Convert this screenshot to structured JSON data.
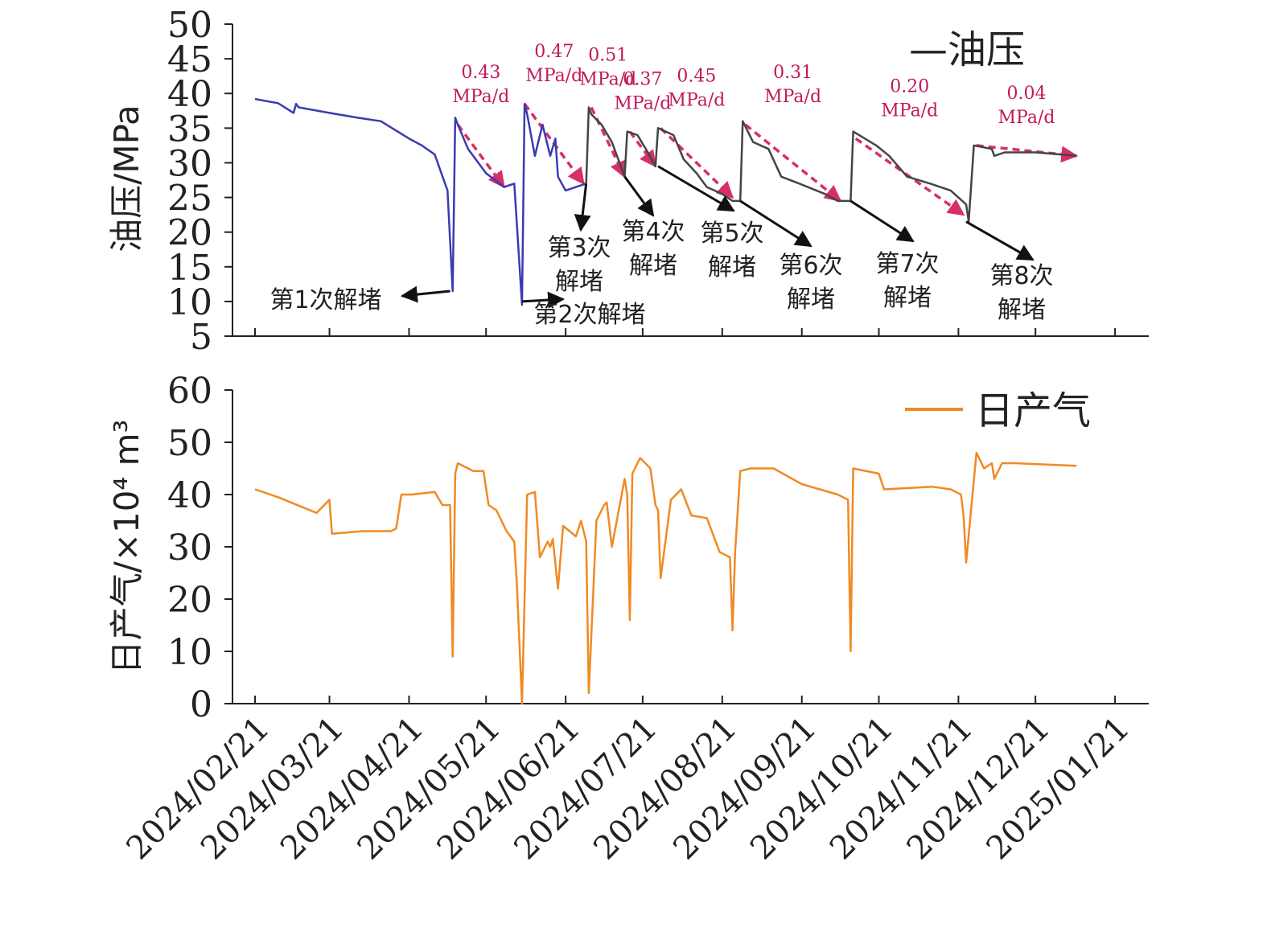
{
  "chart_data": [
    {
      "type": "line",
      "ylabel": "油压/MPa",
      "ylim": [
        5,
        50
      ],
      "yticks": [
        "5",
        "10",
        "15",
        "20",
        "25",
        "30",
        "35",
        "40",
        "45",
        "50"
      ],
      "legend": {
        "label": "—油压",
        "position": "top-right"
      },
      "colors": {
        "line_early": "#3b3bb0",
        "line_late": "#444444",
        "trend": "#d62f6a",
        "arrow": "#111111"
      },
      "series": [
        {
          "name": "油压",
          "x": [
            "2024/02/21",
            "2024/03/01",
            "2024/03/07",
            "2024/03/08",
            "2024/03/09",
            "2024/03/21",
            "2024/04/01",
            "2024/04/10",
            "2024/04/21",
            "2024/04/26",
            "2024/05/01",
            "2024/05/06",
            "2024/05/08",
            "2024/05/09",
            "2024/05/10",
            "2024/05/14",
            "2024/05/21",
            "2024/05/28",
            "2024/06/01",
            "2024/06/04",
            "2024/06/05",
            "2024/06/06",
            "2024/06/09",
            "2024/06/12",
            "2024/06/15",
            "2024/06/17",
            "2024/06/18",
            "2024/06/21",
            "2024/06/25",
            "2024/06/29",
            "2024/06/30",
            "2024/07/01",
            "2024/07/05",
            "2024/07/09",
            "2024/07/14",
            "2024/07/15",
            "2024/07/19",
            "2024/07/23",
            "2024/07/26",
            "2024/07/27",
            "2024/08/02",
            "2024/08/06",
            "2024/08/11",
            "2024/08/15",
            "2024/08/21",
            "2024/08/25",
            "2024/08/28",
            "2024/08/29",
            "2024/09/02",
            "2024/09/08",
            "2024/09/13",
            "2024/09/20",
            "2024/09/30",
            "2024/10/05",
            "2024/10/10",
            "2024/10/11",
            "2024/10/20",
            "2024/10/25",
            "2024/11/01",
            "2024/11/10",
            "2024/11/18",
            "2024/11/24",
            "2024/11/25",
            "2024/11/27",
            "2024/12/04",
            "2024/12/05",
            "2024/12/09",
            "2024/12/21",
            "2025/01/06"
          ],
          "values": [
            39.2,
            38.6,
            37.2,
            38.5,
            38.0,
            37.2,
            36.5,
            36.0,
            33.5,
            32.5,
            31.2,
            26.0,
            11.5,
            36.5,
            35.5,
            32.0,
            28.5,
            26.5,
            27.0,
            9.5,
            38.5,
            37.0,
            31.0,
            35.5,
            31.0,
            33.5,
            28.0,
            26.0,
            26.5,
            27.0,
            38.0,
            37.0,
            35.5,
            33.0,
            28.0,
            34.5,
            34.0,
            31.5,
            29.5,
            35.0,
            34.0,
            30.5,
            28.5,
            26.5,
            25.5,
            24.5,
            24.5,
            36.0,
            33.0,
            32.0,
            28.0,
            27.0,
            25.5,
            24.5,
            24.5,
            34.5,
            32.5,
            31.0,
            28.0,
            27.0,
            26.0,
            24.0,
            21.5,
            32.5,
            32.0,
            31.0,
            31.5,
            31.5,
            31.0
          ]
        }
      ],
      "trend_lines": [
        {
          "from": [
            "2024/05/10",
            35.5
          ],
          "to": [
            "2024/05/28",
            26.5
          ],
          "rate": "0.43",
          "unit": "MPa/d"
        },
        {
          "from": [
            "2024/06/05",
            38.5
          ],
          "to": [
            "2024/06/28",
            27.0
          ],
          "rate": "0.47",
          "unit": "MPa/d"
        },
        {
          "from": [
            "2024/07/01",
            38.0
          ],
          "to": [
            "2024/07/14",
            28.0
          ],
          "rate": "0.51",
          "unit": "MPa/d"
        },
        {
          "from": [
            "2024/07/16",
            34.5
          ],
          "to": [
            "2024/07/26",
            29.5
          ],
          "rate": "0.37",
          "unit": "MPa/d"
        },
        {
          "from": [
            "2024/07/28",
            35.0
          ],
          "to": [
            "2024/08/25",
            25.0
          ],
          "rate": "0.45",
          "unit": "MPa/d"
        },
        {
          "from": [
            "2024/08/30",
            35.5
          ],
          "to": [
            "2024/10/06",
            24.5
          ],
          "rate": "0.31",
          "unit": "MPa/d"
        },
        {
          "from": [
            "2024/10/12",
            33.5
          ],
          "to": [
            "2024/11/23",
            22.5
          ],
          "rate": "0.20",
          "unit": "MPa/d"
        },
        {
          "from": [
            "2024/11/28",
            32.5
          ],
          "to": [
            "2025/01/06",
            31.0
          ],
          "rate": "0.04",
          "unit": "MPa/d"
        }
      ],
      "annotations": [
        {
          "lines": [
            "第1次解堵"
          ],
          "target": [
            "2024/05/07",
            11.5
          ]
        },
        {
          "lines": [
            "第2次解堵"
          ],
          "target": [
            "2024/06/04",
            10.0
          ]
        },
        {
          "lines": [
            "第3次",
            "解堵"
          ],
          "target": [
            "2024/06/29",
            27.0
          ]
        },
        {
          "lines": [
            "第4次",
            "解堵"
          ],
          "target": [
            "2024/07/14",
            28.0
          ]
        },
        {
          "lines": [
            "第5次",
            "解堵"
          ],
          "target": [
            "2024/07/27",
            29.5
          ]
        },
        {
          "lines": [
            "第6次",
            "解堵"
          ],
          "target": [
            "2024/08/28",
            24.5
          ]
        },
        {
          "lines": [
            "第7次",
            "解堵"
          ],
          "target": [
            "2024/10/10",
            24.5
          ]
        },
        {
          "lines": [
            "第8次",
            "解堵"
          ],
          "target": [
            "2024/11/24",
            21.5
          ]
        }
      ]
    },
    {
      "type": "line",
      "ylabel": "日产气/×10⁴ m³",
      "ylim": [
        0,
        60
      ],
      "yticks": [
        "0",
        "10",
        "20",
        "30",
        "40",
        "50",
        "60"
      ],
      "legend": {
        "label": "日产气",
        "position": "top-right"
      },
      "colors": {
        "line": "#f08a24"
      },
      "series": [
        {
          "name": "日产气",
          "x": [
            "2024/02/21",
            "2024/03/01",
            "2024/03/11",
            "2024/03/16",
            "2024/03/21",
            "2024/03/22",
            "2024/04/03",
            "2024/04/14",
            "2024/04/16",
            "2024/04/18",
            "2024/04/22",
            "2024/05/01",
            "2024/05/04",
            "2024/05/07",
            "2024/05/08",
            "2024/05/09",
            "2024/05/10",
            "2024/05/16",
            "2024/05/20",
            "2024/05/22",
            "2024/05/25",
            "2024/05/29",
            "2024/06/01",
            "2024/06/02",
            "2024/06/04",
            "2024/06/06",
            "2024/06/09",
            "2024/06/11",
            "2024/06/14",
            "2024/06/15",
            "2024/06/16",
            "2024/06/18",
            "2024/06/20",
            "2024/06/25",
            "2024/06/27",
            "2024/06/29",
            "2024/06/30",
            "2024/07/03",
            "2024/07/06",
            "2024/07/07",
            "2024/07/09",
            "2024/07/14",
            "2024/07/15",
            "2024/07/16",
            "2024/07/17",
            "2024/07/20",
            "2024/07/24",
            "2024/07/26",
            "2024/07/27",
            "2024/07/28",
            "2024/08/01",
            "2024/08/05",
            "2024/08/09",
            "2024/08/15",
            "2024/08/20",
            "2024/08/24",
            "2024/08/25",
            "2024/08/26",
            "2024/08/28",
            "2024/09/01",
            "2024/09/10",
            "2024/09/21",
            "2024/10/05",
            "2024/10/09",
            "2024/10/10",
            "2024/10/11",
            "2024/10/21",
            "2024/10/23",
            "2024/11/11",
            "2024/11/18",
            "2024/11/20",
            "2024/11/22",
            "2024/11/23",
            "2024/11/24",
            "2024/11/28",
            "2024/12/01",
            "2024/12/04",
            "2024/12/05",
            "2024/12/08",
            "2024/12/13",
            "2025/01/06"
          ],
          "values": [
            41.0,
            39.5,
            37.5,
            36.5,
            39.0,
            32.5,
            33.0,
            33.0,
            33.5,
            40.0,
            40.0,
            40.5,
            38.0,
            38.0,
            9.0,
            44.0,
            46.0,
            44.5,
            44.5,
            38.0,
            37.0,
            33.0,
            31.0,
            23.0,
            0,
            40.0,
            40.5,
            28.0,
            31.0,
            30.0,
            31.5,
            22.0,
            34.0,
            32.0,
            35.0,
            31.0,
            2.0,
            35.0,
            38.0,
            38.5,
            30.0,
            43.0,
            40.0,
            16.0,
            44.0,
            47.0,
            45.0,
            38.0,
            37.0,
            24.0,
            39.0,
            41.0,
            36.0,
            35.5,
            29.0,
            28.0,
            14.0,
            29.0,
            44.5,
            45.0,
            45.0,
            42.0,
            40.0,
            39.0,
            10.0,
            45.0,
            44.0,
            41.0,
            41.5,
            41.0,
            40.5,
            40.0,
            36.0,
            27.0,
            48.0,
            45.0,
            46.0,
            43.0,
            46.0,
            46.0,
            45.5
          ]
        }
      ]
    }
  ],
  "xaxis": {
    "ticks": [
      "2024/02/21",
      "2024/03/21",
      "2024/04/21",
      "2024/05/21",
      "2024/06/21",
      "2024/07/21",
      "2024/08/21",
      "2024/09/21",
      "2024/10/21",
      "2024/11/21",
      "2024/12/21",
      "2025/01/21"
    ],
    "label_rotation": -45
  }
}
